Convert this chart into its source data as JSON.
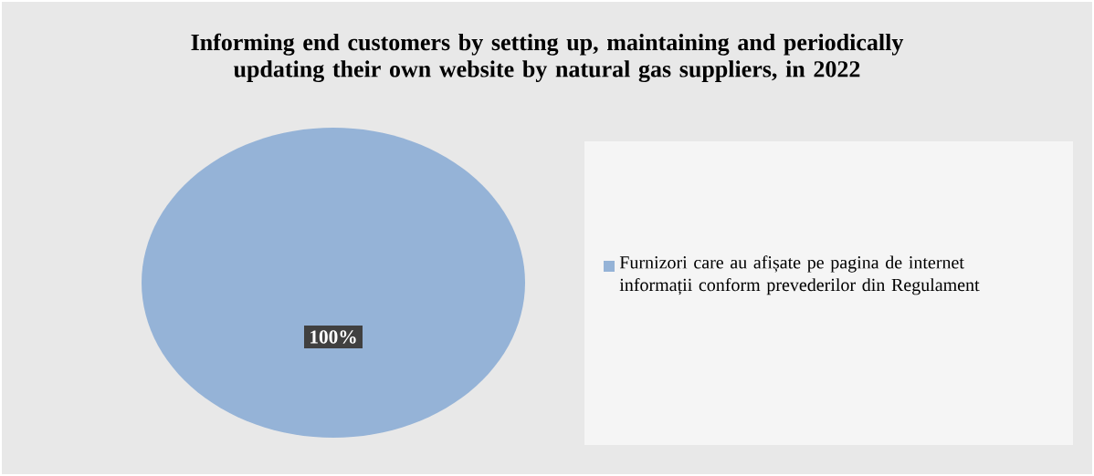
{
  "chart_data": {
    "type": "pie",
    "title": "Informing end customers by setting up, maintaining and periodically updating their own website by natural gas suppliers, in 2022",
    "categories": [
      "Furnizori care au afișate pe pagina de internet informații conform prevederilor din Regulament"
    ],
    "values": [
      100
    ],
    "colors": [
      "#95b3d7"
    ],
    "value_labels": [
      "100%"
    ],
    "legend": "right"
  }
}
